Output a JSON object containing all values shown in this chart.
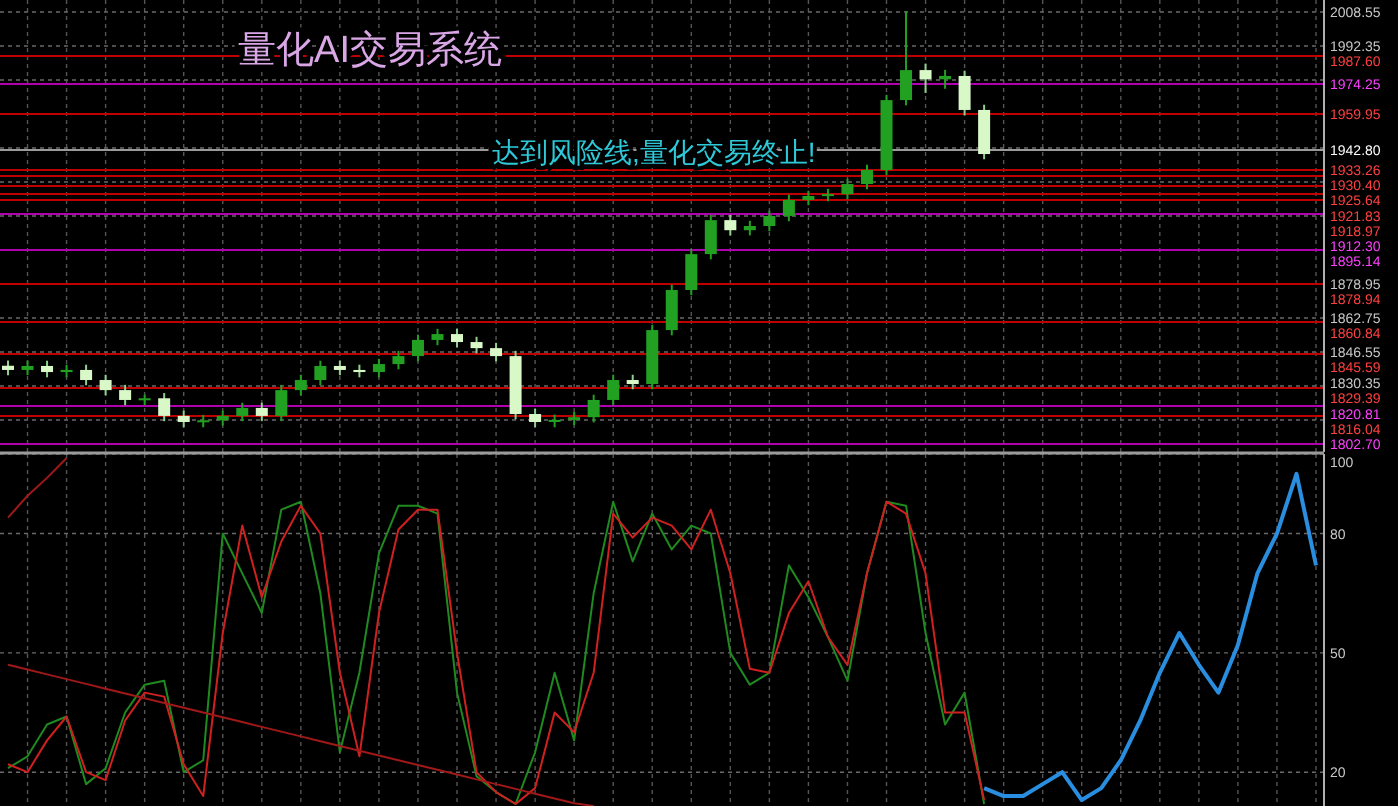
{
  "chart_data": [
    {
      "type": "candlestick",
      "title": "量化AI交易系统",
      "annotations": [
        "达到风险线,量化交易终止!"
      ],
      "grid": true,
      "categories": [
        null,
        null,
        null,
        null,
        null,
        null,
        null,
        null,
        null,
        null,
        null,
        null,
        null,
        null,
        null,
        null,
        null,
        null,
        null,
        null,
        null,
        null,
        null,
        null,
        null,
        null,
        null,
        null,
        null,
        null,
        null,
        null,
        null,
        null,
        null,
        null,
        null,
        null,
        null,
        null,
        null,
        null,
        null,
        null,
        null,
        null,
        null,
        null,
        null,
        null,
        null,
        null,
        null,
        null,
        null,
        null,
        null,
        null,
        null,
        null,
        null,
        null,
        null,
        null,
        null,
        null,
        null,
        null
      ],
      "ohlc": [
        [
          1840.0,
          1842.5,
          1835.5,
          1838.0
        ],
        [
          1838.0,
          1842.4,
          1835.5,
          1839.9
        ],
        [
          1839.9,
          1842.4,
          1834.5,
          1837.0
        ],
        [
          1837.0,
          1840.5,
          1834.5,
          1838.0
        ],
        [
          1838.0,
          1840.5,
          1830.7,
          1833.2
        ],
        [
          1833.2,
          1835.7,
          1825.9,
          1828.4
        ],
        [
          1828.4,
          1830.9,
          1821.2,
          1823.7
        ],
        [
          1823.7,
          1826.2,
          1821.2,
          1824.5
        ],
        [
          1824.5,
          1827.0,
          1813.6,
          1816.1
        ],
        [
          1816.1,
          1818.6,
          1810.7,
          1813.2
        ],
        [
          1813.2,
          1816.5,
          1810.7,
          1814.0
        ],
        [
          1814.0,
          1818.6,
          1811.5,
          1816.1
        ],
        [
          1816.1,
          1822.4,
          1813.6,
          1819.9
        ],
        [
          1819.9,
          1822.4,
          1813.6,
          1816.1
        ],
        [
          1816.1,
          1830.9,
          1813.6,
          1828.4
        ],
        [
          1828.4,
          1835.7,
          1825.9,
          1833.2
        ],
        [
          1833.2,
          1842.4,
          1830.7,
          1839.9
        ],
        [
          1839.9,
          1842.4,
          1835.5,
          1838.0
        ],
        [
          1838.0,
          1840.5,
          1834.5,
          1837.0
        ],
        [
          1837.0,
          1843.3,
          1834.5,
          1840.8
        ],
        [
          1840.8,
          1847.1,
          1838.3,
          1844.6
        ],
        [
          1844.6,
          1854.8,
          1842.1,
          1852.3
        ],
        [
          1852.3,
          1857.6,
          1849.8,
          1855.1
        ],
        [
          1855.1,
          1857.6,
          1848.8,
          1851.3
        ],
        [
          1851.3,
          1853.8,
          1845.9,
          1848.4
        ],
        [
          1848.4,
          1850.9,
          1842.1,
          1844.6
        ],
        [
          1844.6,
          1847.1,
          1814.5,
          1817.0
        ],
        [
          1817.0,
          1819.5,
          1810.7,
          1813.2
        ],
        [
          1813.2,
          1816.7,
          1810.7,
          1814.2
        ],
        [
          1814.2,
          1818.0,
          1811.7,
          1815.5
        ],
        [
          1815.5,
          1826.2,
          1813.0,
          1823.7
        ],
        [
          1823.7,
          1835.7,
          1821.2,
          1833.2
        ],
        [
          1833.2,
          1835.7,
          1828.8,
          1831.3
        ],
        [
          1831.3,
          1859.5,
          1828.8,
          1857.0
        ],
        [
          1857.0,
          1878.6,
          1854.5,
          1876.1
        ],
        [
          1876.1,
          1895.7,
          1873.6,
          1893.2
        ],
        [
          1893.2,
          1911.9,
          1890.7,
          1909.4
        ],
        [
          1909.4,
          1911.9,
          1902.1,
          1904.6
        ],
        [
          1904.6,
          1909.1,
          1902.1,
          1906.6
        ],
        [
          1906.6,
          1913.9,
          1904.1,
          1911.4
        ],
        [
          1911.4,
          1921.5,
          1908.9,
          1919.0
        ],
        [
          1919.0,
          1923.4,
          1916.5,
          1920.9
        ],
        [
          1920.9,
          1924.3,
          1918.4,
          1921.8
        ],
        [
          1921.8,
          1929.1,
          1919.3,
          1926.6
        ],
        [
          1926.6,
          1935.8,
          1924.1,
          1933.3
        ],
        [
          1933.3,
          1969.1,
          1930.8,
          1966.6
        ],
        [
          1966.6,
          2009.0,
          1964.1,
          1980.9
        ],
        [
          1980.9,
          1984.0,
          1970.0,
          1976.5
        ],
        [
          1976.5,
          1981.0,
          1972.0,
          1978.1
        ],
        [
          1978.1,
          1980.6,
          1959.4,
          1961.9
        ],
        [
          1961.9,
          1964.4,
          1938.4,
          1940.9
        ],
        null,
        null,
        null,
        null,
        null,
        null,
        null,
        null,
        null,
        null,
        null,
        null,
        null,
        null,
        null,
        null,
        null
      ],
      "ylim": [
        1798.9,
        2014.3
      ],
      "yticks": [
        2008.55,
        1992.35,
        {
          "value": 1976.15,
          "label": null
        },
        {
          "value": 1959.95,
          "label": null
        },
        {
          "value": 1943.75,
          "label": null
        },
        {
          "value": 1927.55,
          "label": null
        },
        {
          "value": 1911.35,
          "label": null
        },
        {
          "value": 1895.15,
          "label": null
        },
        1878.95,
        1862.75,
        1846.55,
        1830.35,
        {
          "value": 1814.15,
          "label": null
        }
      ],
      "ref_lines": [
        {
          "axis": "y",
          "value": 1987.6,
          "label": "1987.60",
          "color": "#c00000"
        },
        {
          "axis": "y",
          "value": 1974.25,
          "label": "1974.25",
          "color": "#b000b0"
        },
        {
          "axis": "y",
          "value": 1959.95,
          "label": "1959.95",
          "color": "#c00000"
        },
        {
          "axis": "y",
          "value": 1942.8,
          "label": "1942.80",
          "color": "#9a9a9a"
        },
        {
          "axis": "y",
          "value": 1933.26,
          "label": "1933.26",
          "color": "#c00000"
        },
        {
          "axis": "y",
          "value": 1930.4,
          "label": "1930.40",
          "color": "#c00000"
        },
        {
          "axis": "y",
          "value": 1925.64,
          "label": "1925.64",
          "color": "#c00000"
        },
        {
          "axis": "y",
          "value": 1921.83,
          "label": "1921.83",
          "color": "#c00000"
        },
        {
          "axis": "y",
          "value": 1918.97,
          "label": "1918.97",
          "color": "#c00000"
        },
        {
          "axis": "y",
          "value": 1912.3,
          "label": "1912.30",
          "color": "#b000b0"
        },
        {
          "axis": "y",
          "value": 1895.14,
          "label": "1895.14",
          "color": "#b000b0"
        },
        {
          "axis": "y",
          "value": 1878.94,
          "label": "1878.94",
          "color": "#c00000"
        },
        {
          "axis": "y",
          "value": 1860.84,
          "label": "1860.84",
          "color": "#c00000"
        },
        {
          "axis": "y",
          "value": 1845.59,
          "label": "1845.59",
          "color": "#c00000"
        },
        {
          "axis": "y",
          "value": 1829.39,
          "label": "1829.39",
          "color": "#c00000"
        },
        {
          "axis": "y",
          "value": 1820.81,
          "label": "1820.81",
          "color": "#b000b0"
        },
        {
          "axis": "y",
          "value": 1816.04,
          "label": "1816.04",
          "color": "#c00000"
        },
        {
          "axis": "y",
          "value": 1802.7,
          "label": "1802.70",
          "color": "#b000b0"
        }
      ]
    },
    {
      "type": "line",
      "grid": true,
      "categories": [
        null,
        null,
        null,
        null,
        null,
        null,
        null,
        null,
        null,
        null,
        null,
        null,
        null,
        null,
        null,
        null,
        null,
        null,
        null,
        null,
        null,
        null,
        null,
        null,
        null,
        null,
        null,
        null,
        null,
        null,
        null,
        null,
        null,
        null,
        null,
        null,
        null,
        null,
        null,
        null,
        null,
        null,
        null,
        null,
        null,
        null,
        null,
        null,
        null,
        null,
        null,
        null,
        null,
        null,
        null,
        null,
        null,
        null,
        null,
        null,
        null,
        null,
        null,
        null,
        null,
        null,
        null,
        null
      ],
      "ylim": [
        11.5,
        100
      ],
      "yticks": [
        20,
        50,
        80,
        100
      ],
      "series": [
        {
          "color": "#1f8a1f",
          "values": [
            21,
            24,
            32,
            34,
            17,
            21,
            35,
            42,
            43,
            20,
            23,
            80,
            70,
            60,
            86,
            88,
            65,
            25,
            45,
            75,
            87,
            87,
            85,
            40,
            19,
            15,
            12,
            25,
            45,
            28,
            65,
            88,
            73,
            85,
            76,
            82,
            80,
            50,
            42,
            45,
            72,
            64,
            54,
            43,
            70,
            88,
            87,
            55,
            32,
            40,
            12,
            null,
            null,
            null,
            null,
            null,
            null,
            null,
            null,
            null,
            null,
            null,
            null,
            null,
            null,
            null,
            null,
            null
          ]
        },
        {
          "color": "#d02020",
          "values": [
            22,
            20,
            28,
            34,
            20,
            18,
            33,
            40,
            39,
            22,
            14,
            55,
            82,
            64,
            78,
            87,
            80,
            45,
            24,
            60,
            81,
            86,
            86,
            50,
            20,
            15,
            12,
            16,
            35,
            30,
            45,
            85,
            79,
            84,
            82,
            76,
            86,
            70,
            46,
            45,
            60,
            68,
            54,
            47,
            70,
            88,
            85,
            70,
            35,
            35,
            13,
            null,
            null,
            null,
            null,
            null,
            null,
            null,
            null,
            null,
            null,
            null,
            null,
            null,
            null,
            null,
            null,
            null
          ]
        },
        {
          "color": "#a01818",
          "values": [
            47,
            45.8,
            44.6,
            43.4,
            42.2,
            41,
            39.8,
            38.6,
            37.4,
            36.2,
            35,
            33.8,
            32.6,
            31.4,
            30.2,
            29,
            27.8,
            26.6,
            25.4,
            24.2,
            23,
            21.8,
            20.6,
            19.4,
            18.2,
            17,
            15.8,
            14.6,
            13.4,
            12.2,
            11.5,
            null,
            null,
            null,
            null,
            null,
            null,
            null,
            null,
            null,
            null,
            null,
            null,
            null,
            null,
            null,
            null,
            null,
            null,
            null,
            null,
            null,
            null,
            null,
            null,
            null,
            null,
            null,
            null,
            null,
            null,
            null,
            null,
            null,
            null,
            null,
            null,
            null
          ]
        },
        {
          "color": "#a01818",
          "values": [
            84,
            89.5,
            94,
            99,
            null,
            null,
            null,
            null,
            null,
            null,
            null,
            null,
            null,
            null,
            null,
            null,
            null,
            null,
            null,
            null,
            null,
            null,
            null,
            null,
            null,
            null,
            null,
            null,
            null,
            null,
            null,
            null,
            null,
            null,
            null,
            null,
            null,
            null,
            null,
            null,
            null,
            null,
            null,
            null,
            null,
            null,
            null,
            null,
            null,
            null,
            null,
            null,
            null,
            null,
            null,
            null,
            null,
            null,
            null,
            null,
            null,
            null,
            null,
            null,
            null,
            null,
            null,
            null
          ]
        },
        {
          "color": "#2a8ee0",
          "values": [
            null,
            null,
            null,
            null,
            null,
            null,
            null,
            null,
            null,
            null,
            null,
            null,
            null,
            null,
            null,
            null,
            null,
            null,
            null,
            null,
            null,
            null,
            null,
            null,
            null,
            null,
            null,
            null,
            null,
            null,
            null,
            null,
            null,
            null,
            null,
            null,
            null,
            null,
            null,
            null,
            null,
            null,
            null,
            null,
            null,
            null,
            null,
            null,
            null,
            null,
            16,
            14,
            14,
            17,
            20,
            13,
            16,
            23,
            33,
            45,
            55,
            47,
            40,
            52,
            70,
            80,
            95,
            72
          ]
        }
      ]
    }
  ]
}
